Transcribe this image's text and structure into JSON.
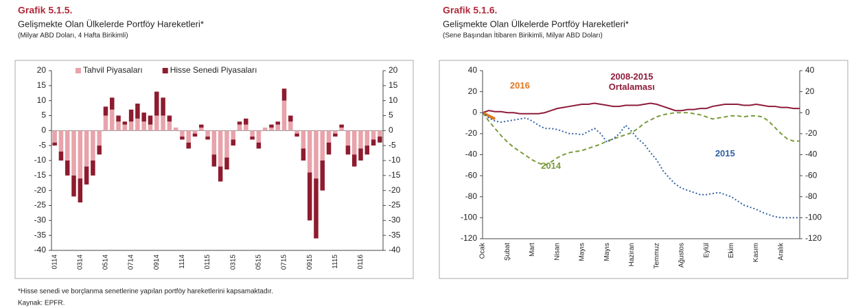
{
  "chart_data": [
    {
      "type": "bar",
      "title": "Grafik 5.1.5.",
      "subtitle": "Gelişmekte Olan Ülkelerde Portföy Hareketleri*",
      "note": "(Milyar ABD Doları, 4 Hafta Birikimli)",
      "categories": [
        "0114",
        null,
        null,
        null,
        "0314",
        null,
        null,
        null,
        "0514",
        null,
        null,
        null,
        "0714",
        null,
        null,
        null,
        "0914",
        null,
        null,
        null,
        "1114",
        null,
        null,
        null,
        "0115",
        null,
        null,
        null,
        "0315",
        null,
        null,
        null,
        "0515",
        null,
        null,
        null,
        "0715",
        null,
        null,
        null,
        "0915",
        null,
        null,
        null,
        "1115",
        null,
        null,
        null,
        "0116",
        null,
        null,
        null
      ],
      "series": [
        {
          "name": "Tahvil Piyasaları",
          "color": "#e8a3ab",
          "values": [
            -4,
            -7,
            -10,
            -15,
            -16,
            -12,
            -10,
            -5,
            5,
            7,
            3,
            2,
            3,
            4,
            3,
            2,
            5,
            5,
            3,
            1,
            -2,
            -4,
            -1,
            1,
            -2,
            -8,
            -12,
            -9,
            -3,
            2,
            2,
            -2,
            -4,
            1,
            1,
            2,
            10,
            3,
            -1,
            -6,
            -14,
            -16,
            -10,
            -4,
            -1,
            1,
            -5,
            -8,
            -6,
            -5,
            -3,
            -2
          ]
        },
        {
          "name": "Hisse Senedi Piyasaları",
          "color": "#8e1b2e",
          "values": [
            -1,
            -3,
            -5,
            -7,
            -8,
            -6,
            -5,
            -3,
            3,
            4,
            2,
            1,
            4,
            5,
            3,
            3,
            8,
            6,
            2,
            0,
            -1,
            -2,
            -1,
            1,
            -1,
            -4,
            -5,
            -4,
            -2,
            1,
            2,
            -1,
            -2,
            0,
            1,
            1,
            4,
            2,
            -1,
            -4,
            -16,
            -20,
            -10,
            -4,
            -1,
            1,
            -3,
            -4,
            -4,
            -3,
            -2,
            -2
          ]
        }
      ],
      "ylim": [
        -40,
        20
      ],
      "yticks": [
        -40,
        -35,
        -30,
        -25,
        -20,
        -15,
        -10,
        -5,
        0,
        5,
        10,
        15,
        20
      ],
      "y2lim": [
        -40,
        20
      ],
      "y2ticks": [
        -40,
        -35,
        -30,
        -25,
        -20,
        -15,
        -10,
        -5,
        0,
        5,
        10,
        15,
        20
      ]
    },
    {
      "type": "line",
      "title": "Grafik 5.1.6.",
      "subtitle": "Gelişmekte Olan Ülkelerde Portföy Hareketleri*",
      "note": "(Sene Başından İtibaren Birikimli, Milyar ABD Doları)",
      "categories": [
        "Ocak",
        null,
        null,
        null,
        "Şubat",
        null,
        null,
        null,
        "Mart",
        null,
        null,
        null,
        "Nisan",
        null,
        null,
        null,
        "Mayıs",
        null,
        null,
        null,
        "Mayıs",
        null,
        null,
        null,
        "Haziran",
        null,
        null,
        null,
        "Temmuz",
        null,
        null,
        null,
        "Ağustos",
        null,
        null,
        null,
        "Eylül",
        null,
        null,
        null,
        "Ekim",
        null,
        null,
        null,
        "Kasım",
        null,
        null,
        null,
        "Aralık",
        null,
        null,
        null
      ],
      "series": [
        {
          "name": "2008-2015 Ortalaması",
          "color": "#8e1b3a",
          "dash": "solid",
          "values": [
            0,
            2,
            1,
            1,
            0,
            0,
            -1,
            -1,
            -1,
            -1,
            0,
            2,
            4,
            5,
            6,
            7,
            8,
            8,
            9,
            8,
            7,
            6,
            6,
            7,
            7,
            7,
            8,
            9,
            8,
            6,
            4,
            2,
            2,
            3,
            3,
            4,
            4,
            6,
            7,
            8,
            8,
            8,
            7,
            7,
            8,
            7,
            6,
            6,
            5,
            5,
            4,
            4
          ]
        },
        {
          "name": "2016",
          "color": "#e2761f",
          "dash": "solid",
          "values": [
            0,
            -3,
            -6,
            null,
            null,
            null,
            null,
            null,
            null,
            null,
            null,
            null,
            null,
            null,
            null,
            null,
            null,
            null,
            null,
            null,
            null,
            null,
            null,
            null,
            null,
            null,
            null,
            null,
            null,
            null,
            null,
            null,
            null,
            null,
            null,
            null,
            null,
            null,
            null,
            null,
            null,
            null,
            null,
            null,
            null,
            null,
            null,
            null,
            null,
            null,
            null,
            null
          ]
        },
        {
          "name": "2014",
          "color": "#7a9a3a",
          "dash": "dashed",
          "values": [
            0,
            -8,
            -15,
            -22,
            -28,
            -33,
            -37,
            -41,
            -45,
            -48,
            -50,
            -47,
            -43,
            -40,
            -38,
            -37,
            -36,
            -34,
            -32,
            -30,
            -27,
            -25,
            -23,
            -21,
            -19,
            -15,
            -10,
            -7,
            -4,
            -2,
            -1,
            0,
            0,
            0,
            -1,
            -2,
            -4,
            -6,
            -5,
            -4,
            -3,
            -3,
            -4,
            -3,
            -3,
            -4,
            -8,
            -14,
            -20,
            -25,
            -27,
            -27
          ]
        },
        {
          "name": "2015",
          "color": "#2e5fa3",
          "dash": "dotted",
          "values": [
            0,
            -5,
            -8,
            -9,
            -8,
            -7,
            -6,
            -5,
            -8,
            -12,
            -15,
            -15,
            -16,
            -18,
            -20,
            -20,
            -21,
            -18,
            -15,
            -20,
            -28,
            -25,
            -20,
            -12,
            -18,
            -25,
            -30,
            -38,
            -45,
            -55,
            -62,
            -68,
            -72,
            -74,
            -76,
            -78,
            -78,
            -77,
            -76,
            -78,
            -80,
            -84,
            -88,
            -90,
            -92,
            -95,
            -97,
            -99,
            -100,
            -100,
            -100,
            -100
          ]
        }
      ],
      "ylim": [
        -120,
        40
      ],
      "yticks": [
        -120,
        -100,
        -80,
        -60,
        -40,
        -20,
        0,
        20,
        40
      ],
      "y2lim": [
        -120,
        40
      ],
      "y2ticks": [
        -120,
        -100,
        -80,
        -60,
        -40,
        -20,
        0,
        20,
        40
      ]
    }
  ],
  "footnote": "*Hisse senedi ve borçlanma senetlerine yapılan portföy hareketlerini kapsamaktadır.",
  "source": "Kaynak: EPFR."
}
